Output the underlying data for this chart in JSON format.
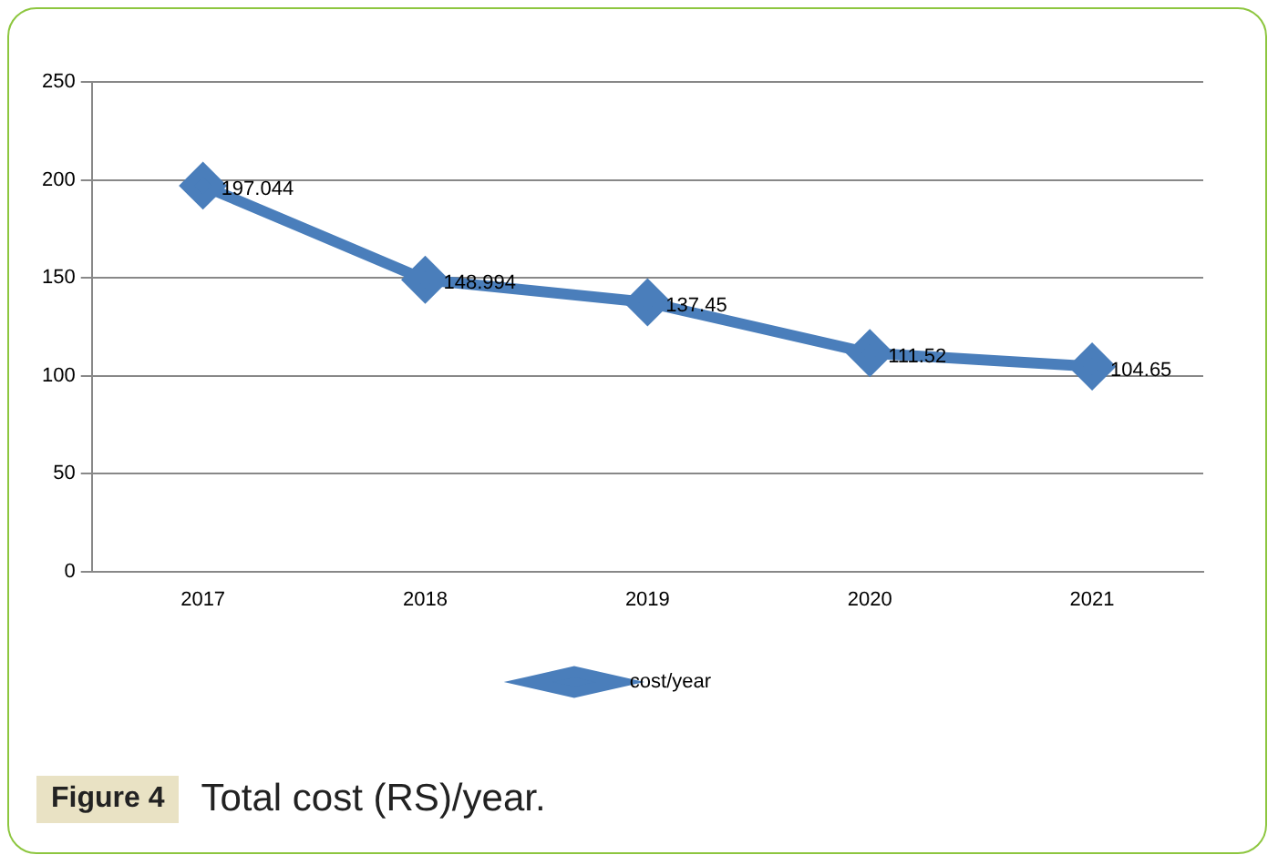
{
  "chart_data": {
    "type": "line",
    "categories": [
      "2017",
      "2018",
      "2019",
      "2020",
      "2021"
    ],
    "series": [
      {
        "name": "cost/year",
        "color": "#4a7ebb",
        "values": [
          197.044,
          148.994,
          137.45,
          111.52,
          104.65
        ]
      }
    ],
    "ylim": [
      0,
      250
    ],
    "yticks": [
      0,
      50,
      100,
      150,
      200,
      250
    ],
    "grid": "y",
    "legend": "bottom",
    "marker": "diamond",
    "line_style": "solid",
    "data_labels": true,
    "annotations": [
      "Figure 4",
      "Total cost (RS)/year."
    ]
  }
}
